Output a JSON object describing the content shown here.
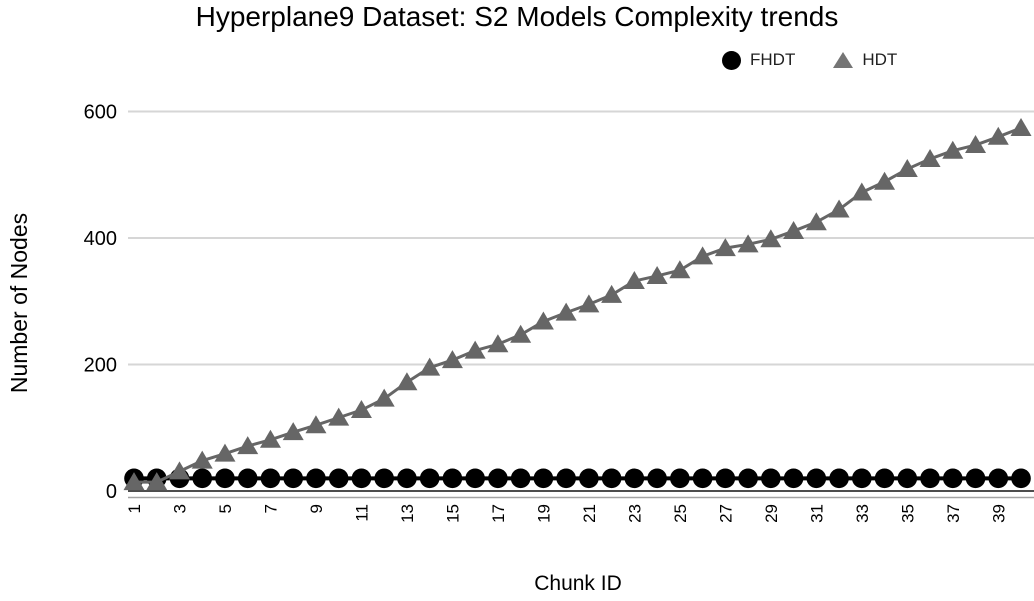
{
  "title": "Hyperplane9 Dataset: S2 Models Complexity trends",
  "legend": {
    "items": [
      {
        "label": "FHDT",
        "marker": "circle-icon",
        "color": "#000000"
      },
      {
        "label": "HDT",
        "marker": "triangle-icon",
        "color": "#757575"
      }
    ]
  },
  "axes": {
    "x_title": "Chunk ID",
    "y_title": "Number of Nodes"
  },
  "colors": {
    "fhdt": "#000000",
    "hdt": "#666666",
    "gridline": "#d6d6d6",
    "axis_line_dark": "#4d4d4d",
    "axis_line_light": "#a3a3a3"
  },
  "chart_data": {
    "type": "line",
    "title": "Hyperplane9 Dataset: S2 Models Complexity trends",
    "xlabel": "Chunk ID",
    "ylabel": "Number of Nodes",
    "x": [
      1,
      2,
      3,
      4,
      5,
      6,
      7,
      8,
      9,
      10,
      11,
      12,
      13,
      14,
      15,
      16,
      17,
      18,
      19,
      20,
      21,
      22,
      23,
      24,
      25,
      26,
      27,
      28,
      29,
      30,
      31,
      32,
      33,
      34,
      35,
      36,
      37,
      38,
      39,
      40
    ],
    "xtick_labels": [
      "1",
      "3",
      "5",
      "7",
      "9",
      "11",
      "13",
      "15",
      "17",
      "19",
      "21",
      "23",
      "25",
      "27",
      "29",
      "31",
      "33",
      "35",
      "37",
      "39"
    ],
    "yticks": [
      0,
      200,
      400,
      600
    ],
    "ylim": [
      0,
      620
    ],
    "grid": true,
    "legend_position": "top-right",
    "series": [
      {
        "name": "FHDT",
        "marker": "circle",
        "color": "#000000",
        "values": [
          20,
          20,
          20,
          20,
          20,
          20,
          20,
          20,
          20,
          20,
          20,
          20,
          20,
          20,
          20,
          20,
          20,
          20,
          20,
          20,
          20,
          20,
          20,
          20,
          20,
          20,
          20,
          20,
          20,
          20,
          20,
          20,
          20,
          20,
          20,
          20,
          20,
          20,
          20,
          20
        ]
      },
      {
        "name": "HDT",
        "marker": "triangle",
        "color": "#666666",
        "values": [
          14,
          14,
          31,
          48,
          59,
          71,
          81,
          93,
          104,
          116,
          128,
          146,
          172,
          195,
          207,
          222,
          232,
          247,
          268,
          282,
          295,
          310,
          332,
          340,
          349,
          371,
          384,
          390,
          398,
          411,
          425,
          445,
          472,
          489,
          509,
          525,
          538,
          547,
          560,
          574
        ]
      }
    ]
  }
}
